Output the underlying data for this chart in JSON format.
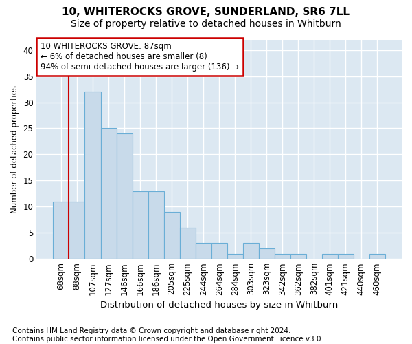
{
  "title1": "10, WHITEROCKS GROVE, SUNDERLAND, SR6 7LL",
  "title2": "Size of property relative to detached houses in Whitburn",
  "xlabel": "Distribution of detached houses by size in Whitburn",
  "ylabel": "Number of detached properties",
  "categories": [
    "68sqm",
    "88sqm",
    "107sqm",
    "127sqm",
    "146sqm",
    "166sqm",
    "186sqm",
    "205sqm",
    "225sqm",
    "244sqm",
    "264sqm",
    "284sqm",
    "303sqm",
    "323sqm",
    "342sqm",
    "362sqm",
    "382sqm",
    "401sqm",
    "421sqm",
    "440sqm",
    "460sqm"
  ],
  "values": [
    11,
    11,
    32,
    25,
    24,
    13,
    13,
    9,
    6,
    3,
    3,
    1,
    3,
    2,
    1,
    1,
    0,
    1,
    1,
    0,
    1
  ],
  "bar_color": "#c8daea",
  "bar_edge_color": "#6aaed6",
  "annotation_text_line1": "10 WHITEROCKS GROVE: 87sqm",
  "annotation_text_line2": "← 6% of detached houses are smaller (8)",
  "annotation_text_line3": "94% of semi-detached houses are larger (136) →",
  "annotation_box_facecolor": "#ffffff",
  "annotation_box_edgecolor": "#cc0000",
  "vline_color": "#cc0000",
  "ylim": [
    0,
    42
  ],
  "yticks": [
    0,
    5,
    10,
    15,
    20,
    25,
    30,
    35,
    40
  ],
  "background_color": "#dce8f2",
  "grid_color": "#ffffff",
  "fig_background": "#ffffff",
  "footer1": "Contains HM Land Registry data © Crown copyright and database right 2024.",
  "footer2": "Contains public sector information licensed under the Open Government Licence v3.0.",
  "title1_fontsize": 11,
  "title2_fontsize": 10,
  "xlabel_fontsize": 9.5,
  "ylabel_fontsize": 8.5,
  "tick_fontsize": 8.5,
  "footer_fontsize": 7.5,
  "ann_fontsize": 8.5
}
